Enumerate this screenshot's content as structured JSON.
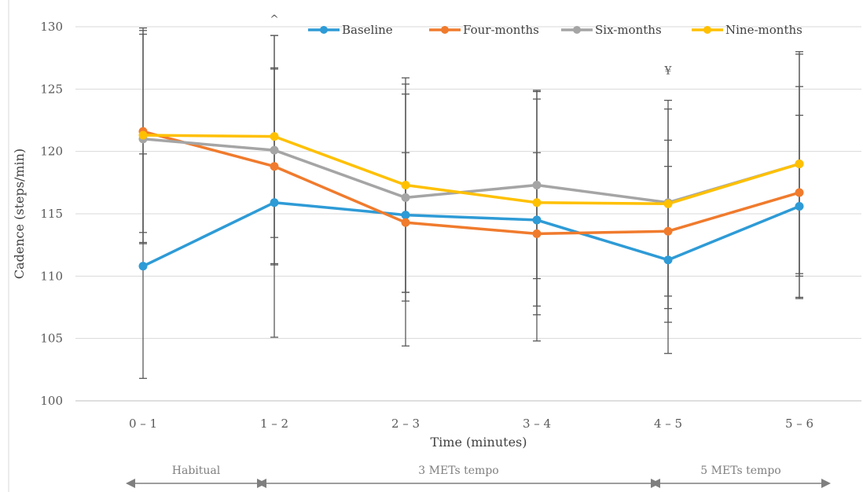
{
  "chart_data": {
    "type": "line",
    "ylabel": "Cadence (steps/min)",
    "xlabel": "Time (minutes)",
    "ylim": [
      100,
      130
    ],
    "yticks": [
      100,
      105,
      110,
      115,
      120,
      125,
      130
    ],
    "categories": [
      "0 – 1",
      "1 – 2",
      "2 – 3",
      "3 – 4",
      "4 – 5",
      "5 – 6"
    ],
    "grid": "horizontal",
    "legend_position": "top",
    "series": [
      {
        "name": "Baseline",
        "color": "#2e9bd6",
        "values": [
          110.8,
          115.9,
          114.9,
          114.5,
          111.3,
          115.6
        ],
        "err_low": [
          101.8,
          105.1,
          104.4,
          104.8,
          103.8,
          108.3
        ],
        "err_high": [
          119.8,
          126.7,
          125.4,
          124.2,
          118.8,
          122.9
        ]
      },
      {
        "name": "Four-months",
        "color": "#f07b2d",
        "values": [
          121.6,
          118.8,
          114.3,
          113.4,
          113.6,
          116.7
        ],
        "err_low": [
          113.5,
          111.0,
          108.7,
          106.9,
          106.3,
          108.2
        ],
        "err_high": [
          129.7,
          126.6,
          119.9,
          119.9,
          120.9,
          125.2
        ]
      },
      {
        "name": "Six-months",
        "color": "#a5a5a5",
        "values": [
          121.0,
          120.1,
          116.3,
          117.3,
          115.9,
          119.0
        ],
        "err_low": [
          112.6,
          110.9,
          108.0,
          109.8,
          107.4,
          110.0
        ],
        "err_high": [
          129.4,
          129.3,
          124.6,
          124.8,
          124.1,
          128.0
        ]
      },
      {
        "name": "Nine-months",
        "color": "#ffc000",
        "values": [
          121.3,
          121.2,
          117.3,
          115.9,
          115.8,
          119.0
        ],
        "err_low": [
          112.7,
          113.1,
          108.7,
          107.6,
          108.4,
          110.2
        ],
        "err_high": [
          129.9,
          129.3,
          125.9,
          124.9,
          123.4,
          127.8
        ]
      }
    ],
    "annotations": [
      {
        "text": "^",
        "category": "1 – 2",
        "y": 130.3
      },
      {
        "text": "¥",
        "category": "4 – 5",
        "y": 126.2
      }
    ],
    "phases": [
      {
        "label": "Habitual",
        "from": 0,
        "to": 1
      },
      {
        "label": "3 METs tempo",
        "from": 1,
        "to": 4
      },
      {
        "label": "5 METs tempo",
        "from": 4,
        "to": 5
      }
    ]
  }
}
